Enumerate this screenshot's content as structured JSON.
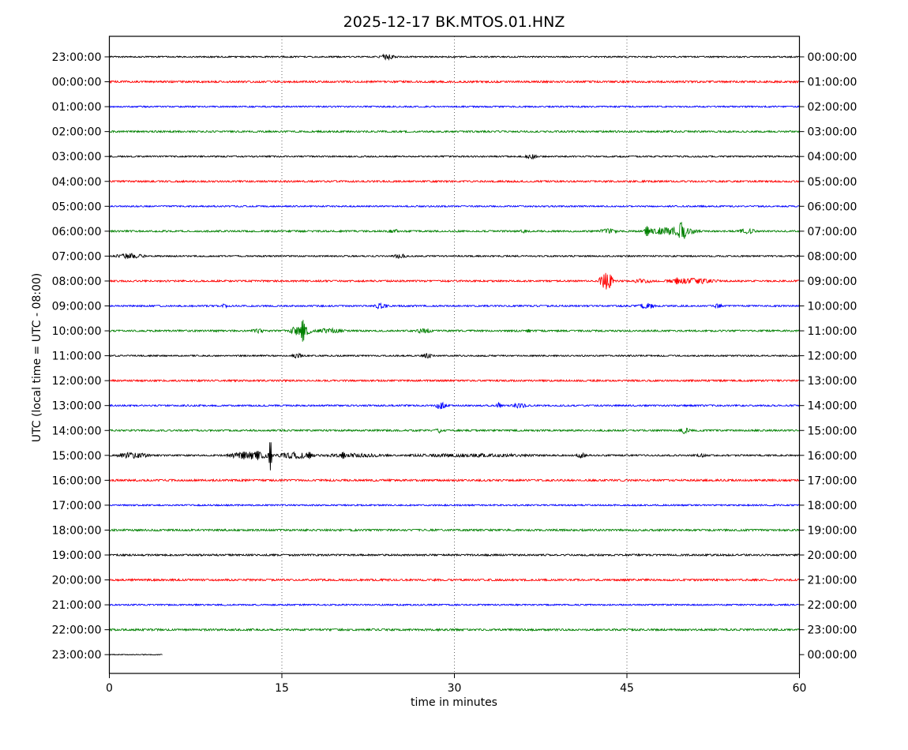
{
  "chart_data": {
    "type": "line",
    "subtype": "helicorder-dayplot",
    "title": "2025-12-17 BK.MTOS.01.HNZ",
    "date": "2025-12-17",
    "station": "BK.MTOS.01.HNZ",
    "xlabel": "time in minutes",
    "ylabel": "UTC (local time = UTC - 08:00)",
    "x_range": [
      0,
      60
    ],
    "x_ticks": [
      0,
      15,
      30,
      45,
      60
    ],
    "grid_minutes": [
      15,
      30,
      45
    ],
    "minutes_per_row": 60,
    "grid": "dotted-vertical",
    "legend": "none",
    "colors": {
      "black": "#000000",
      "red": "#ff0000",
      "blue": "#0000ff",
      "green": "#008000"
    },
    "color_cycle": [
      "black",
      "red",
      "blue",
      "green"
    ],
    "rows": [
      {
        "utc_local": "23:00:00",
        "utc_right": "00:00:00",
        "color": "black",
        "span": [
          0,
          60
        ],
        "base": 0.9,
        "events": [
          {
            "s": 23.4,
            "e": 24.9,
            "a": 2.6
          }
        ]
      },
      {
        "utc_local": "00:00:00",
        "utc_right": "01:00:00",
        "color": "red",
        "span": [
          0,
          60
        ],
        "base": 1.2,
        "events": []
      },
      {
        "utc_local": "01:00:00",
        "utc_right": "02:00:00",
        "color": "blue",
        "span": [
          0,
          60
        ],
        "base": 0.9,
        "events": []
      },
      {
        "utc_local": "02:00:00",
        "utc_right": "03:00:00",
        "color": "green",
        "span": [
          0,
          60
        ],
        "base": 1.1,
        "events": []
      },
      {
        "utc_local": "03:00:00",
        "utc_right": "04:00:00",
        "color": "black",
        "span": [
          0,
          60
        ],
        "base": 0.9,
        "events": [
          {
            "s": 36.1,
            "e": 37.3,
            "a": 2.2
          }
        ]
      },
      {
        "utc_local": "04:00:00",
        "utc_right": "05:00:00",
        "color": "red",
        "span": [
          0,
          60
        ],
        "base": 1.1,
        "events": []
      },
      {
        "utc_local": "05:00:00",
        "utc_right": "06:00:00",
        "color": "blue",
        "span": [
          0,
          60
        ],
        "base": 0.9,
        "events": []
      },
      {
        "utc_local": "06:00:00",
        "utc_right": "07:00:00",
        "color": "green",
        "span": [
          0,
          60
        ],
        "base": 1.1,
        "events": [
          {
            "s": 24.2,
            "e": 25.2,
            "a": 1.8
          },
          {
            "s": 35.7,
            "e": 36.3,
            "a": 1.5
          },
          {
            "s": 42.4,
            "e": 44.3,
            "a": 2.0
          },
          {
            "s": 46.2,
            "e": 51.6,
            "a": 4.2
          },
          {
            "s": 46.5,
            "e": 47.0,
            "a": 6.5
          },
          {
            "s": 49.4,
            "e": 50.2,
            "a": 7.5
          },
          {
            "s": 54.6,
            "e": 56.4,
            "a": 2.4
          }
        ]
      },
      {
        "utc_local": "07:00:00",
        "utc_right": "08:00:00",
        "color": "black",
        "span": [
          0,
          60
        ],
        "base": 0.9,
        "events": [
          {
            "s": 0.3,
            "e": 3.3,
            "a": 2.6
          },
          {
            "s": 24.6,
            "e": 26.0,
            "a": 2.2
          }
        ]
      },
      {
        "utc_local": "08:00:00",
        "utc_right": "09:00:00",
        "color": "red",
        "span": [
          0,
          60
        ],
        "base": 1.1,
        "events": [
          {
            "s": 42.5,
            "e": 43.9,
            "a": 10.5
          },
          {
            "s": 45.4,
            "e": 47.3,
            "a": 2.0
          },
          {
            "s": 48.1,
            "e": 53.2,
            "a": 2.6
          },
          {
            "s": 49.15,
            "e": 49.55,
            "a": 4.5
          }
        ]
      },
      {
        "utc_local": "09:00:00",
        "utc_right": "10:00:00",
        "color": "blue",
        "span": [
          0,
          60
        ],
        "base": 1.0,
        "events": [
          {
            "s": 9.7,
            "e": 10.3,
            "a": 2.0
          },
          {
            "s": 22.9,
            "e": 24.3,
            "a": 2.8
          },
          {
            "s": 45.9,
            "e": 47.6,
            "a": 2.8
          },
          {
            "s": 52.5,
            "e": 53.3,
            "a": 2.0
          }
        ]
      },
      {
        "utc_local": "10:00:00",
        "utc_right": "11:00:00",
        "color": "green",
        "span": [
          0,
          60
        ],
        "base": 1.1,
        "events": [
          {
            "s": 12.3,
            "e": 13.5,
            "a": 2.2
          },
          {
            "s": 15.6,
            "e": 17.7,
            "a": 6.5
          },
          {
            "s": 16.6,
            "e": 17.05,
            "a": 14.0
          },
          {
            "s": 17.7,
            "e": 20.6,
            "a": 2.4
          },
          {
            "s": 26.6,
            "e": 28.1,
            "a": 2.6
          },
          {
            "s": 36.2,
            "e": 36.7,
            "a": 2.2
          }
        ]
      },
      {
        "utc_local": "11:00:00",
        "utc_right": "12:00:00",
        "color": "black",
        "span": [
          0,
          60
        ],
        "base": 0.9,
        "events": [
          {
            "s": 15.8,
            "e": 16.9,
            "a": 2.2
          },
          {
            "s": 27.1,
            "e": 28.3,
            "a": 2.2
          }
        ]
      },
      {
        "utc_local": "12:00:00",
        "utc_right": "13:00:00",
        "color": "red",
        "span": [
          0,
          60
        ],
        "base": 1.1,
        "events": []
      },
      {
        "utc_local": "13:00:00",
        "utc_right": "14:00:00",
        "color": "blue",
        "span": [
          0,
          60
        ],
        "base": 1.0,
        "events": [
          {
            "s": 28.2,
            "e": 29.5,
            "a": 3.4
          },
          {
            "s": 33.6,
            "e": 34.15,
            "a": 3.2
          },
          {
            "s": 34.8,
            "e": 36.4,
            "a": 2.2
          }
        ]
      },
      {
        "utc_local": "14:00:00",
        "utc_right": "15:00:00",
        "color": "green",
        "span": [
          0,
          60
        ],
        "base": 1.1,
        "events": [
          {
            "s": 28.3,
            "e": 29.0,
            "a": 2.2
          },
          {
            "s": 49.5,
            "e": 50.5,
            "a": 3.2
          }
        ]
      },
      {
        "utc_local": "15:00:00",
        "utc_right": "16:00:00",
        "color": "black",
        "span": [
          0,
          60
        ],
        "base": 1.0,
        "events": [
          {
            "s": 0.4,
            "e": 3.7,
            "a": 2.8
          },
          {
            "s": 10.1,
            "e": 14.4,
            "a": 4.0
          },
          {
            "s": 11.5,
            "e": 11.9,
            "a": 5.0
          },
          {
            "s": 12.7,
            "e": 13.1,
            "a": 6.0
          },
          {
            "s": 13.85,
            "e": 14.15,
            "a": 19.0
          },
          {
            "s": 14.4,
            "e": 18.0,
            "a": 3.2
          },
          {
            "s": 17.2,
            "e": 17.6,
            "a": 4.5
          },
          {
            "s": 20.1,
            "e": 20.55,
            "a": 4.5
          },
          {
            "s": 18.0,
            "e": 24.5,
            "a": 1.6
          },
          {
            "s": 25.0,
            "e": 38.0,
            "a": 1.3
          },
          {
            "s": 40.6,
            "e": 41.5,
            "a": 2.2
          },
          {
            "s": 51.0,
            "e": 51.9,
            "a": 1.6
          }
        ]
      },
      {
        "utc_local": "16:00:00",
        "utc_right": "17:00:00",
        "color": "red",
        "span": [
          0,
          60
        ],
        "base": 1.2,
        "events": []
      },
      {
        "utc_local": "17:00:00",
        "utc_right": "18:00:00",
        "color": "blue",
        "span": [
          0,
          60
        ],
        "base": 0.9,
        "events": []
      },
      {
        "utc_local": "18:00:00",
        "utc_right": "19:00:00",
        "color": "green",
        "span": [
          0,
          60
        ],
        "base": 1.2,
        "events": []
      },
      {
        "utc_local": "19:00:00",
        "utc_right": "20:00:00",
        "color": "black",
        "span": [
          0,
          60
        ],
        "base": 1.1,
        "events": []
      },
      {
        "utc_local": "20:00:00",
        "utc_right": "21:00:00",
        "color": "red",
        "span": [
          0,
          60
        ],
        "base": 1.2,
        "events": []
      },
      {
        "utc_local": "21:00:00",
        "utc_right": "22:00:00",
        "color": "blue",
        "span": [
          0,
          60
        ],
        "base": 0.9,
        "events": []
      },
      {
        "utc_local": "22:00:00",
        "utc_right": "23:00:00",
        "color": "green",
        "span": [
          0,
          60
        ],
        "base": 1.2,
        "events": []
      },
      {
        "utc_local": "23:00:00",
        "utc_right": "00:00:00",
        "color": "black",
        "span": [
          0,
          4.6
        ],
        "base": 0.5,
        "events": []
      }
    ]
  }
}
